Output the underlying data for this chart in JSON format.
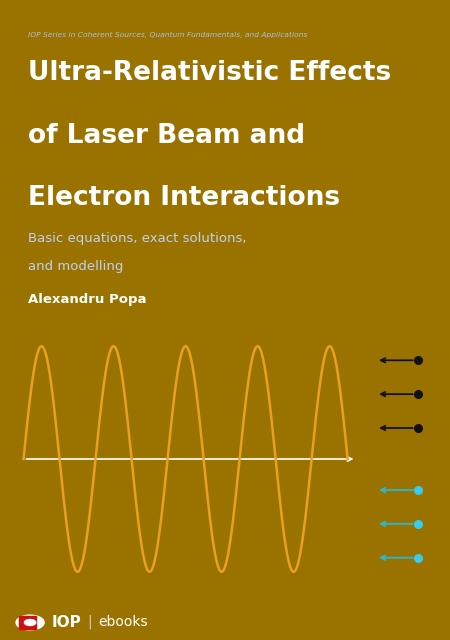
{
  "border_color": "#9a7200",
  "top_strip_color": "#8892aa",
  "blue_bg_color": "#2b3390",
  "dark_upper_color": "#3a4560",
  "dark_lower_color": "#252f45",
  "divider_color": "#1e2840",
  "footer_color": "#8a90b0",
  "series_text": "IOP Series in Coherent Sources, Quantum Fundamentals, and Applications",
  "title_line1": "Ultra-Relativistic Effects",
  "title_line2": "of Laser Beam and",
  "title_line3": "Electron Interactions",
  "subtitle_line1": "Basic equations, exact solutions,",
  "subtitle_line2": "and modelling",
  "author": "Alexandru Popa",
  "sine_color": "#e8a020",
  "arrow_dark_color": "#111111",
  "arrow_cyan_color": "#28b8d5",
  "arrow_cyan_dot": "#38ccee"
}
